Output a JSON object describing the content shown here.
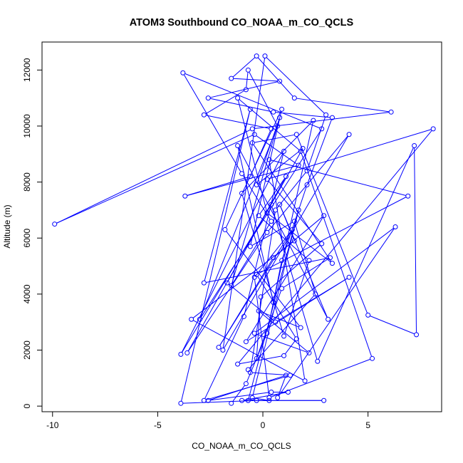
{
  "chart_data": {
    "type": "line",
    "title": "ATOM3 Southbound CO_NOAA_m_CO_QCLS",
    "xlabel": "CO_NOAA_m_CO_QCLS",
    "ylabel": "Altitude (m)",
    "xlim": [
      -10.5,
      8.5
    ],
    "ylim": [
      -200,
      13000
    ],
    "x_ticks": [
      -10,
      -5,
      0,
      5
    ],
    "x_tick_labels": [
      "-10",
      "-5",
      "0",
      "5"
    ],
    "y_ticks": [
      0,
      2000,
      4000,
      6000,
      8000,
      10000,
      12000
    ],
    "y_tick_labels": [
      "0",
      "2000",
      "4000",
      "6000",
      "8000",
      "10000",
      "12000"
    ],
    "grid": false,
    "legend": "none",
    "marker": "open-circle",
    "color": "#0000ff",
    "series": [
      {
        "x": [
          -1.5,
          -0.8,
          0.2,
          0.9,
          2.1,
          3.3,
          0.5,
          -2.6,
          0.8,
          -1.5,
          -0.3,
          1.5,
          6.1,
          -0.5,
          -9.9,
          -0.4,
          1.7,
          -3.7,
          -0.6,
          0.4,
          -2.8,
          -0.8,
          -0.7,
          0.7,
          -3.0,
          2.8,
          -3.8,
          -1.0,
          0.4,
          -1.5,
          0.8,
          -0.3,
          1.9,
          -3.6,
          0.2,
          4.1,
          -1.9,
          0.1,
          3.0,
          2.1,
          0.6,
          -0.6,
          1.3,
          -2.8,
          -0.9,
          1.0,
          -3.9,
          0.4,
          2.6,
          7.2,
          7.3,
          5.0,
          1.6,
          -0.5,
          3.3,
          0.2,
          -1.2,
          1.8,
          5.2,
          0.3,
          -0.4,
          1.4,
          -2.1,
          0.5,
          2.9,
          -0.8,
          4.1,
          0.6,
          -1.7,
          1.1,
          -0.2,
          2.2,
          1.0,
          -1.0,
          2.4,
          0.5,
          -1.2,
          3.1,
          0.8,
          1.5,
          -3.4,
          2.0,
          0.3,
          6.9,
          -0.3,
          1.6,
          1.0,
          -1.2,
          8.1,
          0.2,
          2.8,
          -0.1,
          -0.3,
          0.9,
          3.2,
          -2.8,
          -0.6,
          -3.9,
          -0.3,
          0.3,
          -0.5,
          1.7,
          -0.7,
          2.9,
          -1.0,
          1.2,
          0.4,
          -2.6,
          1.1,
          0.7,
          6.3,
          -0.4,
          2.2,
          -0.2,
          1.8,
          -1.8,
          0.9,
          -0.6,
          1.5,
          2.5,
          -0.7
        ],
        "y": [
          100,
          800,
          2600,
          5200,
          7900,
          10300,
          10500,
          11000,
          11600,
          11700,
          12500,
          11000,
          10500,
          9900,
          6500,
          9700,
          8600,
          7500,
          8200,
          9900,
          10400,
          11300,
          12000,
          10000,
          3100,
          9900,
          11900,
          8300,
          6600,
          4300,
          10300,
          7900,
          9200,
          1900,
          6200,
          9700,
          2000,
          12500,
          10400,
          8400,
          7000,
          1200,
          1100,
          200,
          3200,
          9100,
          1850,
          7200,
          1600,
          9300,
          2550,
          3250,
          9700,
          9400,
          5100,
          6900,
          11000,
          9100,
          1700,
          300,
          4600,
          6300,
          2100,
          5300,
          6800,
          2300,
          4600,
          3000,
          4400,
          8200,
          6800,
          5200,
          2500,
          7600,
          10200,
          3700,
          9300,
          3100,
          7200,
          5900,
          3100,
          900,
          8800,
          7500,
          4700,
          2400,
          1800,
          1500,
          9900,
          8100,
          5800,
          3900,
          1700,
          4200,
          5300,
          4400,
          10600,
          100,
          200,
          200,
          300,
          7000,
          200,
          200,
          200,
          500,
          500,
          200,
          1100,
          300,
          6400,
          2600,
          1900,
          3400,
          2800,
          6300,
          10600,
          5700,
          6600,
          4000,
          1300
        ]
      }
    ]
  }
}
